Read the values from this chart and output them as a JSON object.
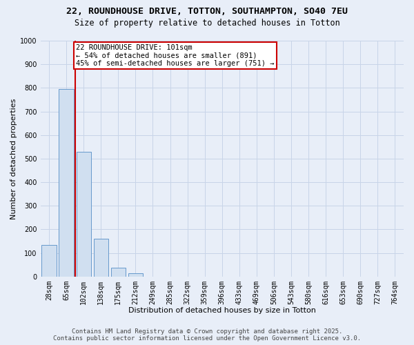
{
  "title_line1": "22, ROUNDHOUSE DRIVE, TOTTON, SOUTHAMPTON, SO40 7EU",
  "title_line2": "Size of property relative to detached houses in Totton",
  "xlabel": "Distribution of detached houses by size in Totton",
  "ylabel": "Number of detached properties",
  "categories": [
    "28sqm",
    "65sqm",
    "102sqm",
    "138sqm",
    "175sqm",
    "212sqm",
    "249sqm",
    "285sqm",
    "322sqm",
    "359sqm",
    "396sqm",
    "433sqm",
    "469sqm",
    "506sqm",
    "543sqm",
    "580sqm",
    "616sqm",
    "653sqm",
    "690sqm",
    "727sqm",
    "764sqm"
  ],
  "values": [
    135,
    795,
    530,
    160,
    38,
    13,
    0,
    0,
    0,
    0,
    0,
    0,
    0,
    0,
    0,
    0,
    0,
    0,
    0,
    0,
    0
  ],
  "bar_color": "#d0dff0",
  "bar_edge_color": "#6699cc",
  "red_line_index": 2,
  "annotation_line1": "22 ROUNDHOUSE DRIVE: 101sqm",
  "annotation_line2": "← 54% of detached houses are smaller (891)",
  "annotation_line3": "45% of semi-detached houses are larger (751) →",
  "annotation_box_color": "#ffffff",
  "annotation_box_edge": "#cc0000",
  "ylim": [
    0,
    1000
  ],
  "yticks": [
    0,
    100,
    200,
    300,
    400,
    500,
    600,
    700,
    800,
    900,
    1000
  ],
  "red_line_color": "#cc0000",
  "grid_color": "#c8d4e8",
  "bg_color": "#e8eef8",
  "title_fontsize": 9.5,
  "subtitle_fontsize": 8.5,
  "axis_label_fontsize": 8,
  "tick_fontsize": 7,
  "annotation_fontsize": 7.5,
  "footer_fontsize": 6.5
}
